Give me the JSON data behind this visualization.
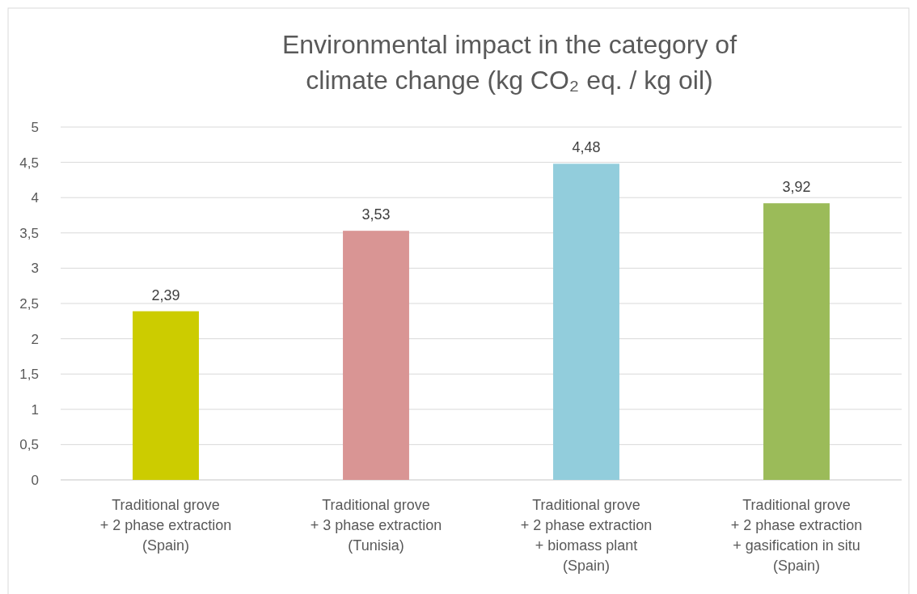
{
  "chart_data": {
    "type": "bar",
    "title": "Environmental impact in the category of climate change (kg CO₂ eq. / kg oil)",
    "categories": [
      "Traditional grove\n+ 2 phase extraction\n(Spain)",
      "Traditional grove\n+ 3 phase extraction\n(Tunisia)",
      "Traditional grove\n+ 2 phase extraction\n+ biomass plant\n(Spain)",
      "Traditional grove\n+ 2 phase extraction\n+ gasification in situ\n(Spain)"
    ],
    "values": [
      2.39,
      3.53,
      4.48,
      3.92
    ],
    "colors": [
      "#cccc00",
      "#d99594",
      "#92cddc",
      "#9bbb59"
    ],
    "value_labels": [
      "2,39",
      "3,53",
      "4,48",
      "3,92"
    ],
    "ylim": [
      0,
      5
    ],
    "yticks": [
      0,
      {
        "value": 0.5,
        "label": "0,5"
      },
      1,
      {
        "value": 1.5,
        "label": "1,5"
      },
      2,
      {
        "value": 2.5,
        "label": "2,5"
      },
      3,
      {
        "value": 3.5,
        "label": "3,5"
      },
      4,
      {
        "value": 4.5,
        "label": "4,5"
      },
      5
    ],
    "grid": "y"
  }
}
